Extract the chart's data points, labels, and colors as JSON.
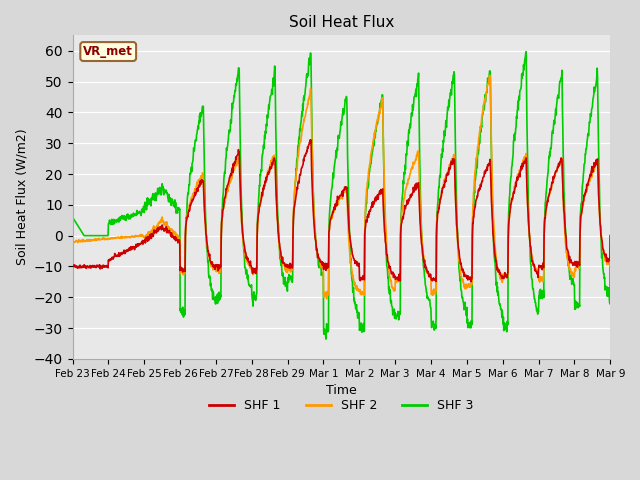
{
  "title": "Soil Heat Flux",
  "xlabel": "Time",
  "ylabel": "Soil Heat Flux (W/m2)",
  "ylim": [
    -40,
    65
  ],
  "yticks": [
    -40,
    -30,
    -20,
    -10,
    0,
    10,
    20,
    30,
    40,
    50,
    60
  ],
  "colors": {
    "SHF 1": "#cc0000",
    "SHF 2": "#ff9900",
    "SHF 3": "#00cc00"
  },
  "legend_label": "VR_met",
  "bg_color": "#e8e8e8",
  "line_width": 1.2,
  "tick_labels": [
    "Feb 23",
    "Feb 24",
    "Feb 25",
    "Feb 26",
    "Feb 27",
    "Feb 28",
    "Feb 29",
    "Mar 1",
    "Mar 2",
    "Mar 3",
    "Mar 4",
    "Mar 5",
    "Mar 6",
    "Mar 7",
    "Mar 8",
    "Mar 9"
  ]
}
